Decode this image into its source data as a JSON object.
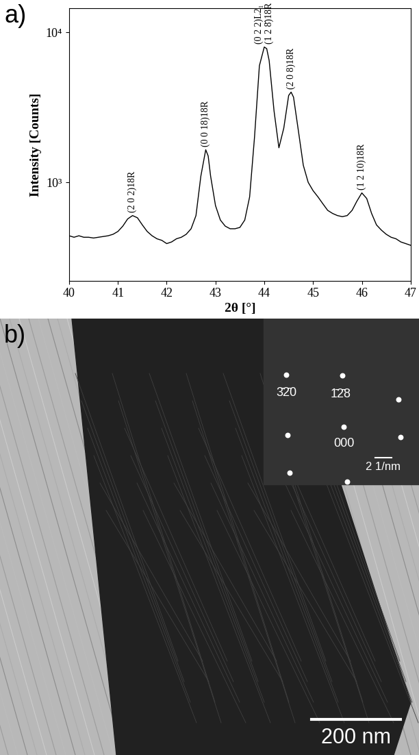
{
  "chart_data": {
    "type": "line",
    "panel_label": "a)",
    "x_label": "2θ [°]",
    "y_label": "Intensity [Counts]",
    "log": "y",
    "color": "#000000",
    "xlim": [
      40,
      47
    ],
    "xticks": [
      40,
      41,
      42,
      43,
      44,
      45,
      46,
      47
    ],
    "ylim": [
      220,
      14500
    ],
    "yticks": [
      {
        "value": 1000,
        "label": "10³"
      },
      {
        "value": 10000,
        "label": "10⁴"
      }
    ],
    "x": [
      40.0,
      40.1,
      40.2,
      40.3,
      40.4,
      40.5,
      40.6,
      40.7,
      40.8,
      40.9,
      41.0,
      41.1,
      41.2,
      41.3,
      41.4,
      41.5,
      41.6,
      41.7,
      41.8,
      41.9,
      42.0,
      42.1,
      42.2,
      42.3,
      42.4,
      42.5,
      42.6,
      42.7,
      42.8,
      42.85,
      42.9,
      43.0,
      43.1,
      43.2,
      43.3,
      43.4,
      43.5,
      43.6,
      43.7,
      43.8,
      43.9,
      44.0,
      44.05,
      44.1,
      44.2,
      44.3,
      44.4,
      44.5,
      44.55,
      44.6,
      44.7,
      44.8,
      44.9,
      45.0,
      45.1,
      45.2,
      45.3,
      45.4,
      45.5,
      45.6,
      45.7,
      45.8,
      45.9,
      46.0,
      46.1,
      46.2,
      46.3,
      46.4,
      46.5,
      46.6,
      46.7,
      46.8,
      46.9,
      47.0
    ],
    "values": [
      440,
      430,
      440,
      430,
      430,
      425,
      430,
      435,
      440,
      450,
      470,
      510,
      570,
      600,
      580,
      520,
      470,
      440,
      420,
      410,
      390,
      400,
      420,
      430,
      450,
      490,
      600,
      1100,
      1650,
      1500,
      1100,
      700,
      560,
      510,
      490,
      490,
      500,
      560,
      800,
      2000,
      6000,
      8000,
      7800,
      6500,
      3000,
      1700,
      2300,
      3800,
      4000,
      3700,
      2200,
      1300,
      1000,
      880,
      800,
      720,
      650,
      620,
      600,
      590,
      600,
      650,
      750,
      850,
      780,
      620,
      520,
      480,
      450,
      430,
      420,
      400,
      390,
      380
    ],
    "annotations": [
      {
        "text": "(2 0 2)18R",
        "x": 41.3,
        "y": 600
      },
      {
        "text": "(0 0 18)18R",
        "x": 42.8,
        "y": 1650
      },
      {
        "text": "(0 2 2)L2₁",
        "x": 44.0,
        "y": 8000
      },
      {
        "text": "(1 2 8̄)18R",
        "x": 44.0,
        "y": 8000
      },
      {
        "text": "(2 0 8)18R",
        "x": 44.55,
        "y": 4000
      },
      {
        "text": "(1 2 10)18R",
        "x": 46.0,
        "y": 850
      }
    ]
  },
  "image_panel": {
    "panel_label": "b)",
    "diffraction_inset": {
      "spot_labels": [
        "3̄2̄0",
        "1̄2̄8",
        "000"
      ],
      "scale_bar": "2 1/nm"
    },
    "scale_bar": "200 nm"
  }
}
